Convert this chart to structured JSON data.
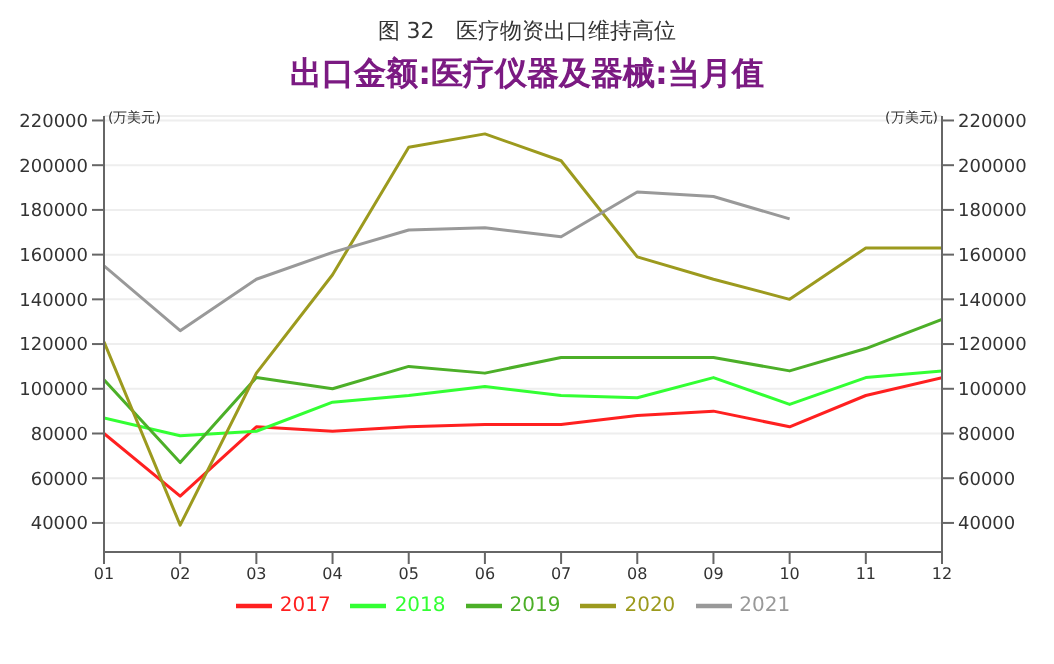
{
  "chart_data": {
    "type": "line",
    "title": "图 32　医疗物资出口维持高位",
    "subtitle": "出口金额:医疗仪器及器械:当月值",
    "ylabel": "(万美元)",
    "y2label": "(万美元)",
    "categories": [
      "01",
      "02",
      "03",
      "04",
      "05",
      "06",
      "07",
      "08",
      "09",
      "10",
      "11",
      "12"
    ],
    "series": [
      {
        "name": "2017",
        "color": "#ff2020",
        "values": [
          80000,
          52000,
          83000,
          81000,
          83000,
          84000,
          84000,
          88000,
          90000,
          83000,
          97000,
          105000
        ]
      },
      {
        "name": "2018",
        "color": "#33ff33",
        "values": [
          87000,
          79000,
          81000,
          94000,
          97000,
          101000,
          97000,
          96000,
          105000,
          93000,
          105000,
          108000
        ]
      },
      {
        "name": "2019",
        "color": "#4caf28",
        "values": [
          104000,
          67000,
          105000,
          100000,
          110000,
          107000,
          114000,
          114000,
          114000,
          108000,
          118000,
          131000
        ]
      },
      {
        "name": "2020",
        "color": "#9c9a1e",
        "values": [
          121000,
          39000,
          107000,
          151000,
          208000,
          214000,
          202000,
          159000,
          149000,
          140000,
          163000,
          163000
        ]
      },
      {
        "name": "2021",
        "color": "#999999",
        "values": [
          155000,
          126000,
          149000,
          161000,
          171000,
          172000,
          168000,
          188000,
          186000,
          176000,
          null,
          null
        ]
      }
    ],
    "ylim": [
      27000,
      222000
    ],
    "yticks": [
      40000,
      60000,
      80000,
      100000,
      120000,
      140000,
      160000,
      180000,
      200000,
      220000
    ],
    "y2lim": [
      27000,
      222000
    ],
    "y2ticks": [
      40000,
      60000,
      80000,
      100000,
      120000,
      140000,
      160000,
      180000,
      200000,
      220000
    ],
    "grid": "y",
    "legend": "bottom",
    "marker": "none",
    "line_style": "solid"
  }
}
